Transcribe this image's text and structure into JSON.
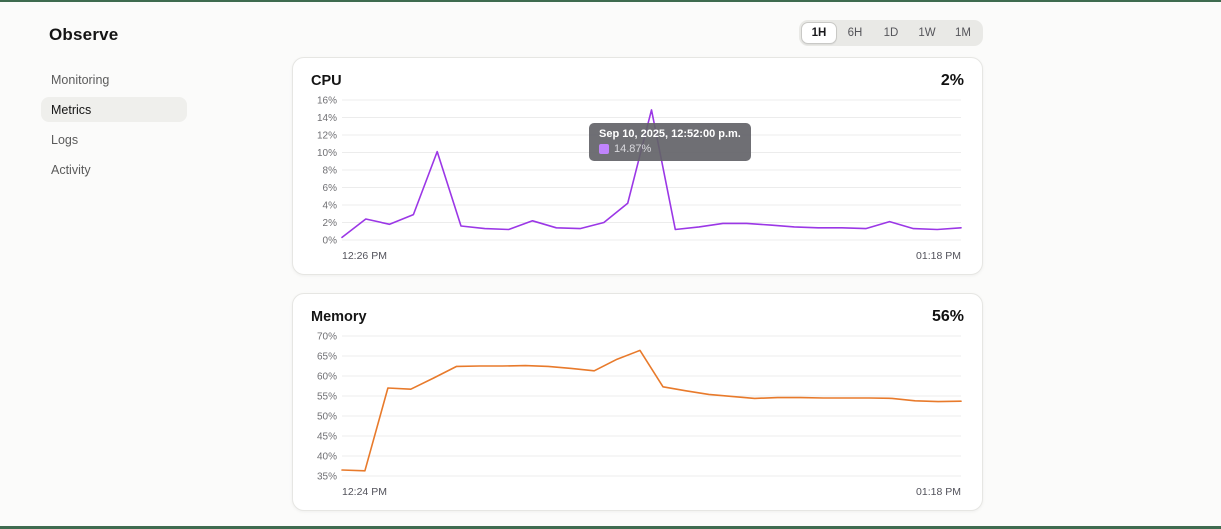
{
  "page": {
    "title": "Observe",
    "accent_bar_color": "#3e6b4f"
  },
  "sidebar": {
    "items": [
      {
        "label": "Monitoring",
        "active": false
      },
      {
        "label": "Metrics",
        "active": true
      },
      {
        "label": "Logs",
        "active": false
      },
      {
        "label": "Activity",
        "active": false
      }
    ]
  },
  "time_range": {
    "options": [
      "1H",
      "6H",
      "1D",
      "1W",
      "1M"
    ],
    "selected": "1H"
  },
  "chart_data": [
    {
      "id": "cpu",
      "type": "line",
      "title": "CPU",
      "current_value": "2%",
      "color": "#9b37e6",
      "ylim": [
        0,
        16
      ],
      "ytick_values": [
        16,
        14,
        12,
        10,
        8,
        6,
        4,
        2,
        0
      ],
      "x_start_label": "12:26 PM",
      "x_end_label": "01:18 PM",
      "grid": true,
      "values": [
        0.3,
        2.4,
        1.8,
        2.9,
        10.1,
        1.6,
        1.3,
        1.2,
        2.2,
        1.4,
        1.3,
        2.0,
        4.2,
        14.87,
        1.2,
        1.5,
        1.9,
        1.9,
        1.7,
        1.5,
        1.4,
        1.4,
        1.3,
        2.1,
        1.3,
        1.2,
        1.4
      ],
      "tooltip": {
        "title": "Sep 10, 2025, 12:52:00 p.m.",
        "value": "14.87%",
        "swatch_color": "#c084fc",
        "point_index": 13
      }
    },
    {
      "id": "memory",
      "type": "line",
      "title": "Memory",
      "current_value": "56%",
      "color": "#e87a2b",
      "ylim": [
        35,
        70
      ],
      "ytick_values": [
        70,
        65,
        60,
        55,
        50,
        45,
        40,
        35
      ],
      "x_start_label": "12:24 PM",
      "x_end_label": "01:18 PM",
      "grid": true,
      "values": [
        36.5,
        36.3,
        57.0,
        56.7,
        59.5,
        62.4,
        62.5,
        62.5,
        62.6,
        62.4,
        61.9,
        61.3,
        64.2,
        66.4,
        57.3,
        56.3,
        55.4,
        54.9,
        54.4,
        54.6,
        54.6,
        54.5,
        54.5,
        54.5,
        54.4,
        53.8,
        53.6,
        53.7
      ]
    }
  ]
}
